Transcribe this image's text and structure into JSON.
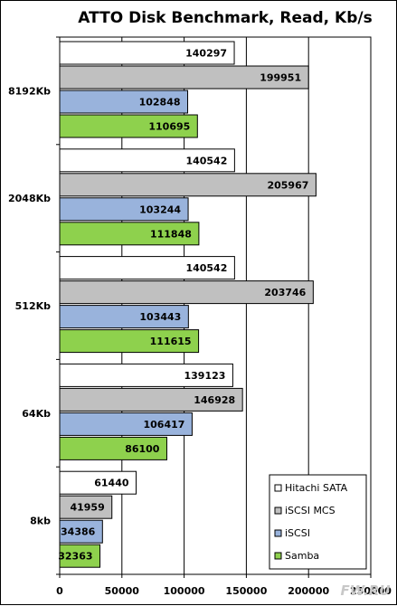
{
  "chart_data": {
    "type": "bar",
    "orientation": "horizontal",
    "title": "ATTO Disk Benchmark, Read, Kb/s",
    "xlabel": "",
    "ylabel": "",
    "xlim": [
      0,
      250000
    ],
    "x_ticks": [
      0,
      50000,
      100000,
      150000,
      200000,
      250000
    ],
    "x_tick_labels": [
      "0",
      "50000",
      "100000",
      "150000",
      "200000",
      "250000"
    ],
    "grid": "vertical",
    "legend_position": "bottom-right",
    "categories": [
      "8192Kb",
      "2048Kb",
      "512Kb",
      "64Kb",
      "8kb"
    ],
    "series": [
      {
        "name": "Hitachi SATA",
        "color": "#ffffff",
        "values": [
          140297,
          140542,
          140542,
          139123,
          61440
        ]
      },
      {
        "name": "iSCSI MCS",
        "color": "#c0c0c0",
        "values": [
          199951,
          205967,
          203746,
          146928,
          41959
        ]
      },
      {
        "name": "iSCSI",
        "color": "#99b3dc",
        "values": [
          102848,
          103244,
          103443,
          106417,
          34386
        ]
      },
      {
        "name": "Samba",
        "color": "#8ed14d",
        "values": [
          110695,
          111848,
          111615,
          86100,
          32363
        ]
      }
    ]
  },
  "watermark": "FW.RU"
}
